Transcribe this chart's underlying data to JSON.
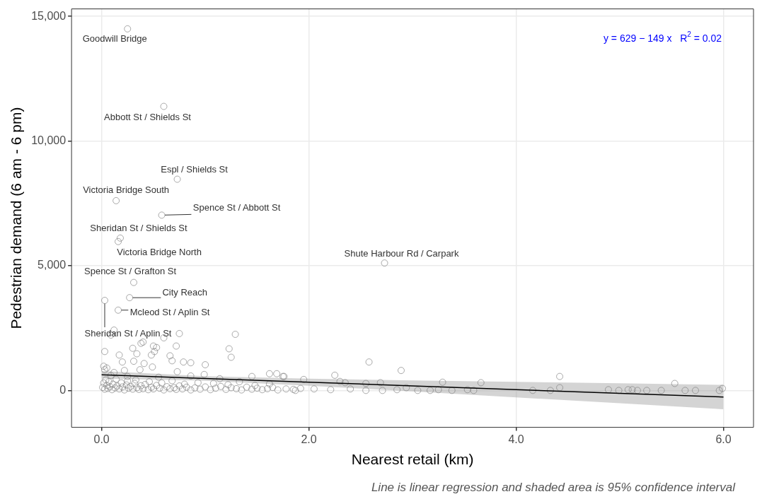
{
  "chart_data": {
    "type": "scatter",
    "xlabel": "Nearest retail (km)",
    "ylabel": "Pedestrian demand (6 am - 6 pm)",
    "xlim": [
      -0.29,
      6.29
    ],
    "ylim": [
      -1480,
      15300
    ],
    "xticks": [
      {
        "value": 0,
        "label": "0.0"
      },
      {
        "value": 2,
        "label": "2.0"
      },
      {
        "value": 4,
        "label": "4.0"
      },
      {
        "value": 6,
        "label": "6.0"
      }
    ],
    "yticks": [
      0,
      {
        "value": 5000,
        "label": "5,000"
      },
      {
        "value": 10000,
        "label": "10,000"
      },
      {
        "value": 15000,
        "label": "15,000"
      }
    ],
    "grid": true,
    "marker": "circle",
    "series": [
      {
        "type": "scatter",
        "color": "#7f7f7f",
        "x": [
          0.25,
          0.6,
          0.73,
          0.14,
          0.58,
          0.18,
          0.16,
          0.31,
          0.27,
          0.16,
          0.03,
          2.73,
          0.12,
          0.09,
          0.4,
          0.38,
          0.5,
          0.53,
          0.6,
          0.75,
          1.29,
          1.23,
          1.25,
          0.72,
          0.03,
          0.3,
          0.34,
          0.17,
          0.48,
          0.51,
          0.66,
          0.68,
          0.79,
          0.86,
          1.0,
          0.2,
          0.31,
          0.41,
          0.49,
          0.22,
          0.37,
          0.73,
          0.02,
          0.03,
          0.12,
          0.25,
          0.55,
          0.86,
          0.99,
          1.14,
          1.45,
          1.62,
          1.69,
          1.75,
          1.76,
          1.95,
          2.25,
          2.58,
          2.89,
          3.29,
          3.66,
          2.3,
          2.35,
          2.55,
          2.69,
          1.87,
          2.05,
          2.21,
          2.4,
          2.55,
          2.71,
          2.85,
          2.94,
          3.05,
          3.17,
          3.25,
          3.38,
          3.53,
          3.59,
          4.42,
          4.42,
          4.16,
          4.33,
          4.89,
          4.99,
          5.08,
          5.12,
          5.17,
          5.26,
          5.4,
          5.53,
          5.63,
          5.73,
          5.96,
          5.99,
          0.01,
          0.02,
          0.03,
          0.04,
          0.05,
          0.06,
          0.07,
          0.08,
          0.1,
          0.11,
          0.13,
          0.15,
          0.17,
          0.19,
          0.2,
          0.22,
          0.24,
          0.26,
          0.28,
          0.3,
          0.32,
          0.34,
          0.36,
          0.38,
          0.4,
          0.42,
          0.45,
          0.48,
          0.5,
          0.53,
          0.56,
          0.6,
          0.63,
          0.66,
          0.7,
          0.72,
          0.75,
          0.78,
          0.82,
          0.86,
          0.9,
          0.95,
          1.0,
          1.05,
          1.1,
          1.15,
          1.2,
          1.25,
          1.3,
          1.35,
          1.4,
          1.45,
          1.5,
          1.55,
          1.6,
          1.65,
          1.7,
          1.78,
          1.85,
          1.92,
          0.05,
          0.09,
          0.14,
          0.25,
          0.33,
          0.46,
          0.58,
          0.68,
          0.8,
          0.93,
          1.08,
          1.22,
          1.33,
          1.48,
          1.62
        ],
        "values": [
          14500,
          11390,
          8470,
          7610,
          7030,
          6110,
          5970,
          4330,
          3720,
          3220,
          3610,
          5110,
          2420,
          2220,
          1940,
          1890,
          1780,
          1720,
          2110,
          2280,
          2250,
          1670,
          1330,
          1780,
          1560,
          1690,
          1470,
          1420,
          1420,
          1560,
          1390,
          1190,
          1140,
          1110,
          1030,
          1140,
          1170,
          1080,
          940,
          800,
          830,
          750,
          970,
          830,
          720,
          560,
          530,
          580,
          640,
          470,
          560,
          670,
          670,
          560,
          560,
          440,
          610,
          1140,
          800,
          330,
          310,
          360,
          310,
          280,
          310,
          0,
          60,
          30,
          60,
          0,
          0,
          30,
          110,
          0,
          0,
          30,
          0,
          30,
          0,
          560,
          110,
          0,
          0,
          30,
          0,
          30,
          30,
          0,
          0,
          0,
          280,
          0,
          0,
          0,
          80,
          120,
          300,
          50,
          420,
          200,
          80,
          350,
          150,
          30,
          250,
          100,
          180,
          60,
          300,
          140,
          20,
          220,
          90,
          160,
          50,
          280,
          110,
          40,
          190,
          70,
          240,
          30,
          130,
          60,
          200,
          90,
          20,
          150,
          70,
          110,
          40,
          180,
          60,
          130,
          20,
          100,
          50,
          140,
          30,
          90,
          160,
          40,
          110,
          70,
          20,
          130,
          50,
          90,
          30,
          70,
          120,
          20,
          60,
          40,
          80,
          900,
          600,
          450,
          380,
          420,
          350,
          300,
          390,
          250,
          310,
          280,
          230,
          350,
          200,
          260
        ]
      },
      {
        "type": "line",
        "color": "#000000",
        "marker": "none",
        "x": [
          0,
          1,
          2,
          3,
          4,
          5,
          6
        ],
        "values": [
          629,
          480,
          331,
          182,
          33,
          -116,
          -265
        ],
        "lower": [
          479,
          390,
          191,
          -38,
          -277,
          -516,
          -755
        ],
        "upper": [
          779,
          570,
          471,
          402,
          343,
          284,
          225
        ]
      }
    ],
    "annotations": [
      {
        "text": "Goodwill Bridge",
        "x": 0.25,
        "y": 14500
      },
      {
        "text": "Abbott St / Shields St",
        "x": 0.6,
        "y": 11390
      },
      {
        "text": "Espl / Shields St",
        "x": 0.73,
        "y": 8470
      },
      {
        "text": "Victoria Bridge South",
        "x": 0.14,
        "y": 7610
      },
      {
        "text": "Spence St / Abbott St",
        "x": 0.58,
        "y": 7030
      },
      {
        "text": "Sheridan St / Shields St",
        "x": 0.18,
        "y": 6110
      },
      {
        "text": "Victoria Bridge North",
        "x": 0.16,
        "y": 5970
      },
      {
        "text": "Spence St / Grafton St",
        "x": 0.31,
        "y": 4330
      },
      {
        "text": "City Reach",
        "x": 0.27,
        "y": 3720
      },
      {
        "text": "Mcleod St / Aplin St",
        "x": 0.16,
        "y": 3220
      },
      {
        "text": "Sheridan St / Aplin St",
        "x": 0.03,
        "y": 3610
      },
      {
        "text": "Shute Harbour Rd / Carpark",
        "x": 2.73,
        "y": 5110
      },
      "y = 629 − 149 x   R$^{2}$ = 0.02",
      "Line is linear regression and shaded area is 95% confidence interval"
    ]
  }
}
